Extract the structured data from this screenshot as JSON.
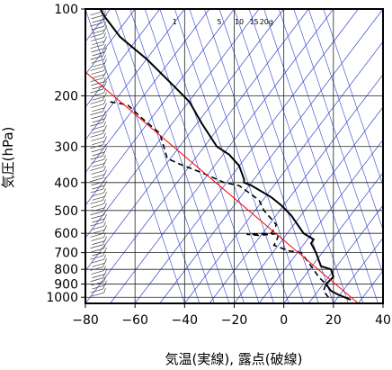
{
  "chart_data": {
    "type": "line",
    "xlabel": "気温(実線), 露点(破線)",
    "ylabel": "気圧(hPa)",
    "xlim": [
      -80,
      40
    ],
    "ylim": [
      1050,
      100
    ],
    "yscale": "log",
    "x_ticks": [
      "−80",
      "−60",
      "−40",
      "−20",
      "0",
      "20",
      "40"
    ],
    "x_tick_values": [
      -80,
      -60,
      -40,
      -20,
      0,
      20,
      40
    ],
    "y_ticks": [
      "100",
      "200",
      "300",
      "400",
      "500",
      "600",
      "700",
      "800",
      "900",
      "1000"
    ],
    "y_tick_values": [
      100,
      200,
      300,
      400,
      500,
      600,
      700,
      800,
      900,
      1000
    ],
    "mixing_ratio_labels": [
      "1",
      "5",
      "10",
      "15",
      "20g"
    ],
    "mixing_ratio_label_x": [
      -44,
      -26,
      -18,
      -12,
      -7
    ],
    "colors": {
      "temperature": "#000000",
      "dewpoint": "#000000",
      "guide": "#ff0000",
      "isotherm": "#3344cc",
      "grid": "#222222"
    },
    "series": [
      {
        "role": "temperature",
        "style": "solid",
        "points": [
          [
            27,
            1020
          ],
          [
            22,
            980
          ],
          [
            19,
            950
          ],
          [
            17,
            900
          ],
          [
            20,
            850
          ],
          [
            19,
            800
          ],
          [
            15,
            780
          ],
          [
            13,
            700
          ],
          [
            11,
            650
          ],
          [
            12,
            630
          ],
          [
            8,
            600
          ],
          [
            3,
            520
          ],
          [
            -1,
            480
          ],
          [
            -5,
            450
          ],
          [
            -13,
            410
          ],
          [
            -16,
            400
          ],
          [
            -16,
            390
          ],
          [
            -18,
            350
          ],
          [
            -22,
            320
          ],
          [
            -27,
            300
          ],
          [
            -33,
            250
          ],
          [
            -38,
            210
          ],
          [
            -43,
            190
          ],
          [
            -55,
            150
          ],
          [
            -66,
            125
          ],
          [
            -72,
            107
          ],
          [
            -74,
            100
          ]
        ]
      },
      {
        "role": "dewpoint",
        "style": "dashed",
        "points": [
          [
            18,
            1000
          ],
          [
            16,
            950
          ],
          [
            17,
            900
          ],
          [
            14,
            850
          ],
          [
            12,
            800
          ],
          [
            7,
            700
          ],
          [
            2,
            690
          ],
          [
            -4,
            660
          ],
          [
            -3,
            640
          ],
          [
            -2,
            600
          ],
          [
            -10,
            610
          ],
          [
            -15,
            605
          ],
          [
            -5,
            600
          ],
          [
            -3,
            560
          ],
          [
            -8,
            500
          ],
          [
            -10,
            460
          ],
          [
            -18,
            410
          ],
          [
            -24,
            400
          ],
          [
            -33,
            370
          ],
          [
            -42,
            345
          ],
          [
            -47,
            330
          ],
          [
            -50,
            270
          ],
          [
            -57,
            240
          ],
          [
            -63,
            215
          ],
          [
            -70,
            210
          ]
        ]
      },
      {
        "role": "guide",
        "style": "red",
        "points": [
          [
            30,
            1050
          ],
          [
            -82,
            160
          ]
        ]
      }
    ]
  }
}
